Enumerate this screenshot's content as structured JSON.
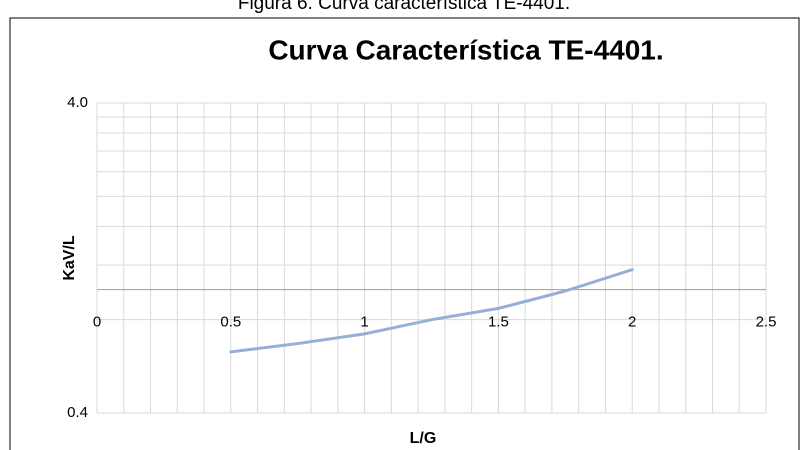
{
  "caption": "Figura 6. Curva característica TE-4401.",
  "chart_data": {
    "type": "line",
    "title": "Curva Característica TE-4401.",
    "x_label": "L/G",
    "y_label": "KaV/L",
    "series": [
      {
        "name": "TE-4401",
        "color": "#95b0d8",
        "x": [
          0.5,
          0.75,
          1,
          1.25,
          1.5,
          1.75,
          2
        ],
        "values": [
          0.63,
          0.67,
          0.72,
          0.8,
          0.87,
          0.99,
          1.16
        ]
      }
    ],
    "xlim": [
      0,
      2.5
    ],
    "xticks": [
      0,
      0.5,
      1,
      1.5,
      2,
      2.5
    ],
    "ylim": [
      0.4,
      4
    ],
    "yticks": [
      0.4,
      {
        "value": 4,
        "label": "4.0"
      }
    ],
    "y_log_scale": true,
    "x_axis_crosses": 1,
    "grid": true,
    "x_minor_gridlines": [
      0.1,
      0.2,
      0.3,
      0.4,
      0.6,
      0.7,
      0.8,
      0.9,
      1.1,
      1.2,
      1.3,
      1.4,
      1.6,
      1.7,
      1.8,
      1.9,
      2.1,
      2.2,
      2.3,
      2.4
    ],
    "y_minor_gridlines": [
      0.8,
      1.2,
      1.6,
      2,
      2.4,
      2.8,
      3.2,
      3.6
    ]
  }
}
